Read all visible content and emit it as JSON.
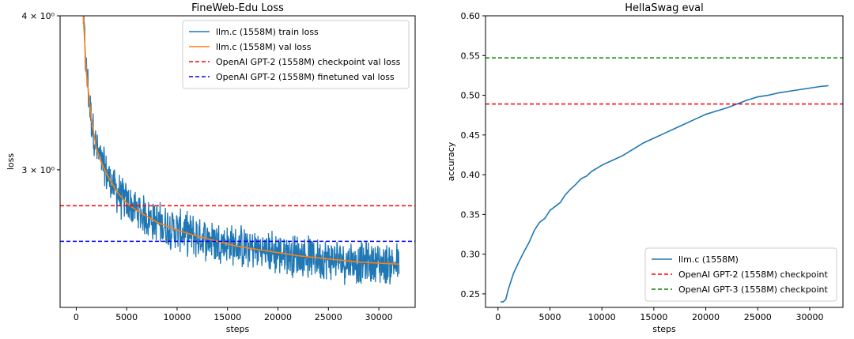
{
  "chart_data": [
    {
      "type": "line",
      "title": "FineWeb-Edu Loss",
      "xlabel": "steps",
      "ylabel": "loss",
      "yscale": "log",
      "xlim": [
        -1600,
        33600
      ],
      "ylim": [
        2.32,
        4.0
      ],
      "xticks": [
        0,
        5000,
        10000,
        15000,
        20000,
        25000,
        30000
      ],
      "xtick_labels": [
        "0",
        "5000",
        "10000",
        "15000",
        "20000",
        "25000",
        "30000"
      ],
      "yticks": [
        {
          "value": 4.0,
          "label": "4 × 10⁰"
        },
        {
          "value": 3.0,
          "label": "3 × 10⁰"
        }
      ],
      "grid": false,
      "legend_position": "top-right",
      "series": [
        {
          "name": "llm.c (1558M) train loss",
          "color": "#1f77b4",
          "style": "solid",
          "noise": "high",
          "x": [
            700,
            1000,
            1500,
            2000,
            2500,
            3000,
            3500,
            4000,
            4500,
            5000,
            6000,
            7000,
            8000,
            9000,
            10000,
            12000,
            14000,
            16000,
            18000,
            20000,
            22000,
            24000,
            26000,
            28000,
            30000,
            32000
          ],
          "values": [
            4.0,
            3.6,
            3.3,
            3.12,
            3.04,
            2.98,
            2.93,
            2.88,
            2.85,
            2.82,
            2.78,
            2.75,
            2.72,
            2.7,
            2.68,
            2.65,
            2.625,
            2.6,
            2.585,
            2.57,
            2.555,
            2.545,
            2.535,
            2.525,
            2.52,
            2.515
          ]
        },
        {
          "name": "llm.c (1558M) val loss",
          "color": "#ff7f0e",
          "style": "solid",
          "x": [
            700,
            1000,
            1500,
            2000,
            2500,
            3000,
            3500,
            4000,
            4500,
            5000,
            6000,
            7000,
            8000,
            9000,
            10000,
            12000,
            14000,
            16000,
            18000,
            20000,
            22000,
            24000,
            26000,
            28000,
            30000,
            32000
          ],
          "values": [
            4.0,
            3.6,
            3.3,
            3.12,
            3.04,
            2.98,
            2.93,
            2.88,
            2.85,
            2.82,
            2.78,
            2.75,
            2.72,
            2.7,
            2.68,
            2.65,
            2.625,
            2.6,
            2.585,
            2.57,
            2.555,
            2.545,
            2.535,
            2.525,
            2.52,
            2.515
          ]
        },
        {
          "name": "OpenAI GPT-2 (1558M) checkpoint val loss",
          "color": "#ff0000",
          "style": "dashed",
          "hline": 2.805
        },
        {
          "name": "OpenAI GPT-2 (1558M) finetuned val loss",
          "color": "#0000ff",
          "style": "dashed",
          "hline": 2.625
        }
      ]
    },
    {
      "type": "line",
      "title": "HellaSwag eval",
      "xlabel": "steps",
      "ylabel": "accuracy",
      "xlim": [
        -1200,
        33200
      ],
      "ylim": [
        0.233,
        0.6
      ],
      "xticks": [
        0,
        5000,
        10000,
        15000,
        20000,
        25000,
        30000
      ],
      "xtick_labels": [
        "0",
        "5000",
        "10000",
        "15000",
        "20000",
        "25000",
        "30000"
      ],
      "yticks": [
        0.25,
        0.3,
        0.35,
        0.4,
        0.45,
        0.5,
        0.55,
        0.6
      ],
      "ytick_labels": [
        "0.25",
        "0.30",
        "0.35",
        "0.40",
        "0.45",
        "0.50",
        "0.55",
        "0.60"
      ],
      "grid": false,
      "legend_position": "bottom-right",
      "series": [
        {
          "name": "llm.c (1558M)",
          "color": "#1f77b4",
          "style": "solid",
          "x": [
            250,
            500,
            750,
            1000,
            1500,
            2000,
            2500,
            3000,
            3500,
            4000,
            4500,
            5000,
            5500,
            6000,
            6500,
            7000,
            7500,
            8000,
            8500,
            9000,
            9500,
            10000,
            11000,
            12000,
            13000,
            14000,
            15000,
            16000,
            17000,
            18000,
            19000,
            20000,
            21000,
            22000,
            23000,
            24000,
            25000,
            26000,
            27000,
            28000,
            29000,
            30000,
            31000,
            31800
          ],
          "values": [
            0.24,
            0.24,
            0.243,
            0.256,
            0.276,
            0.29,
            0.303,
            0.315,
            0.33,
            0.34,
            0.345,
            0.355,
            0.36,
            0.365,
            0.375,
            0.382,
            0.388,
            0.395,
            0.398,
            0.404,
            0.408,
            0.412,
            0.418,
            0.424,
            0.432,
            0.44,
            0.446,
            0.452,
            0.458,
            0.464,
            0.47,
            0.476,
            0.48,
            0.484,
            0.489,
            0.494,
            0.498,
            0.5,
            0.503,
            0.505,
            0.507,
            0.509,
            0.511,
            0.512
          ]
        },
        {
          "name": "OpenAI GPT-2 (1558M) checkpoint",
          "color": "#ff0000",
          "style": "dashed",
          "hline": 0.489
        },
        {
          "name": "OpenAI GPT-3 (1558M) checkpoint",
          "color": "#008000",
          "style": "dashed",
          "hline": 0.547
        }
      ]
    }
  ]
}
